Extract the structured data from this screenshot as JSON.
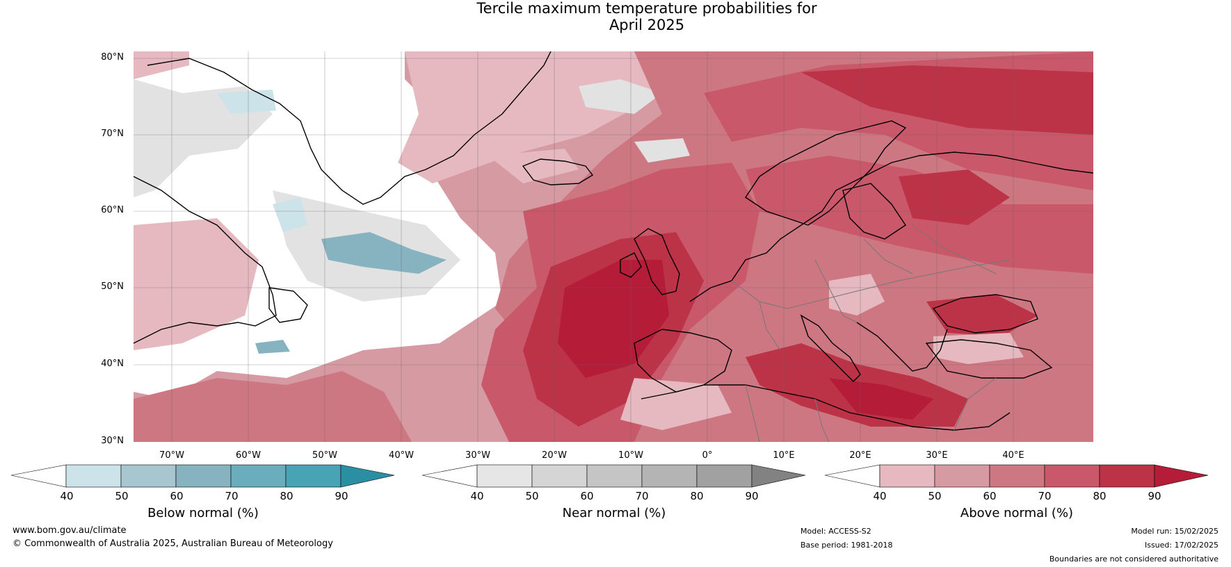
{
  "title_line1": "Tercile maximum temperature probabilities for",
  "title_line2": "April 2025",
  "lat_labels": [
    "80°N",
    "70°N",
    "60°N",
    "50°N",
    "40°N",
    "30°N"
  ],
  "lon_labels": [
    "70°W",
    "60°W",
    "50°W",
    "40°W",
    "30°W",
    "20°W",
    "10°W",
    "0°",
    "10°E",
    "20°E",
    "30°E",
    "40°E"
  ],
  "colorbars": [
    {
      "label": "Below normal (%)",
      "ticks": [
        "40",
        "50",
        "60",
        "70",
        "80",
        "90"
      ],
      "colors": [
        "#ffffff",
        "#cde3ea",
        "#a7c6cf",
        "#87b3c1",
        "#6aadbc",
        "#48a3b4",
        "#2b8fa3"
      ]
    },
    {
      "label": "Near normal (%)",
      "ticks": [
        "40",
        "50",
        "60",
        "70",
        "80",
        "90"
      ],
      "colors": [
        "#ffffff",
        "#e6e6e6",
        "#d5d5d5",
        "#c5c5c5",
        "#b4b4b4",
        "#a1a1a1",
        "#828282"
      ]
    },
    {
      "label": "Above normal (%)",
      "ticks": [
        "40",
        "50",
        "60",
        "70",
        "80",
        "90"
      ],
      "colors": [
        "#ffffff",
        "#e5b9bf",
        "#d69aa2",
        "#cd7782",
        "#c8586a",
        "#bc3347",
        "#b41c38"
      ]
    }
  ],
  "footer": {
    "website": "www.bom.gov.au/climate",
    "copyright": "© Commonwealth of Australia 2025, Australian Bureau of Meteorology",
    "model": "Model: ACCESS-S2",
    "base_period": "Base period: 1981-2018",
    "model_run": "Model run: 15/02/2025",
    "issued": "Issued: 17/02/2025",
    "disclaimer": "Boundaries are not considered authoritative"
  },
  "map_colors": {
    "above_40": "#e5b9bf",
    "above_50": "#d69aa2",
    "above_60": "#cd7782",
    "above_70": "#c8586a",
    "above_80": "#bc3347",
    "above_90": "#b41c38",
    "near": "#e2e2e2",
    "below_50": "#cde3ea",
    "below_70": "#87b3c1"
  }
}
